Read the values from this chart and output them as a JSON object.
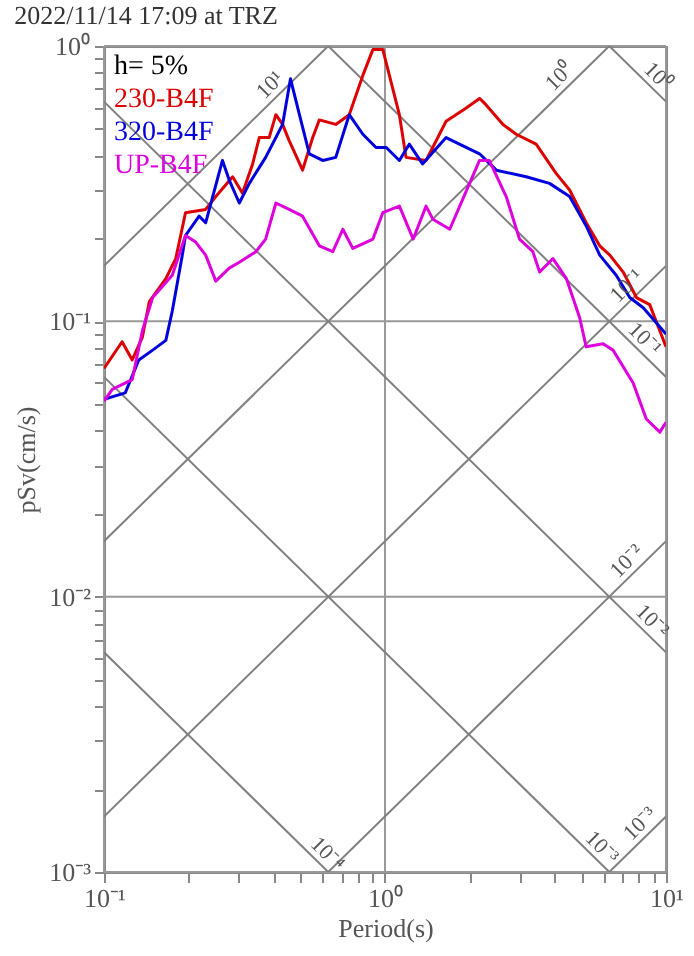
{
  "chart_data": {
    "type": "line",
    "title": "2022/11/14 17:09 at TRZ",
    "xlabel": "Period(s)",
    "ylabel": "pSv(cm/s)",
    "log": "xy",
    "grid": true,
    "legend": "top left",
    "xlim": [
      0.1,
      10
    ],
    "ylim": [
      0.001,
      1
    ],
    "xticks": [
      {
        "value": 0.1,
        "label": "10⁻¹"
      },
      {
        "value": 0.2,
        "label": null
      },
      {
        "value": 0.3,
        "label": null
      },
      {
        "value": 0.4,
        "label": null
      },
      {
        "value": 0.5,
        "label": null
      },
      {
        "value": 0.6,
        "label": null
      },
      {
        "value": 0.7,
        "label": null
      },
      {
        "value": 0.8,
        "label": null
      },
      {
        "value": 0.9,
        "label": null
      },
      {
        "value": 1,
        "label": "10⁰"
      },
      {
        "value": 2,
        "label": null
      },
      {
        "value": 3,
        "label": null
      },
      {
        "value": 4,
        "label": null
      },
      {
        "value": 5,
        "label": null
      },
      {
        "value": 6,
        "label": null
      },
      {
        "value": 7,
        "label": null
      },
      {
        "value": 8,
        "label": null
      },
      {
        "value": 9,
        "label": null
      },
      {
        "value": 10,
        "label": "10¹"
      }
    ],
    "yticks": [
      {
        "value": 0.001,
        "label": "10⁻³"
      },
      {
        "value": 0.002,
        "label": null
      },
      {
        "value": 0.003,
        "label": null
      },
      {
        "value": 0.004,
        "label": null
      },
      {
        "value": 0.005,
        "label": null
      },
      {
        "value": 0.006,
        "label": null
      },
      {
        "value": 0.007,
        "label": null
      },
      {
        "value": 0.008,
        "label": null
      },
      {
        "value": 0.009,
        "label": null
      },
      {
        "value": 0.01,
        "label": "10⁻²"
      },
      {
        "value": 0.02,
        "label": null
      },
      {
        "value": 0.03,
        "label": null
      },
      {
        "value": 0.04,
        "label": null
      },
      {
        "value": 0.05,
        "label": null
      },
      {
        "value": 0.06,
        "label": null
      },
      {
        "value": 0.07,
        "label": null
      },
      {
        "value": 0.08,
        "label": null
      },
      {
        "value": 0.09,
        "label": null
      },
      {
        "value": 0.1,
        "label": "10⁻¹"
      },
      {
        "value": 0.2,
        "label": null
      },
      {
        "value": 0.3,
        "label": null
      },
      {
        "value": 0.4,
        "label": null
      },
      {
        "value": 0.5,
        "label": null
      },
      {
        "value": 0.6,
        "label": null
      },
      {
        "value": 0.7,
        "label": null
      },
      {
        "value": 0.8,
        "label": null
      },
      {
        "value": 0.9,
        "label": null
      },
      {
        "value": 1,
        "label": "10⁰"
      }
    ],
    "annotations": [
      "h= 5%",
      {
        "text": "10¹",
        "x": 0.42,
        "y": 0.67
      },
      {
        "text": "10⁰",
        "x": 4.5,
        "y": 0.72
      },
      {
        "text": "10⁰",
        "x": 8.7,
        "y": 0.72
      },
      {
        "text": "10⁻¹",
        "x": 7.8,
        "y": 0.125
      },
      {
        "text": "10⁻¹",
        "x": 7.8,
        "y": 0.08
      },
      {
        "text": "10⁻²",
        "x": 7.8,
        "y": 0.0125
      },
      {
        "text": "10⁻²",
        "x": 8.3,
        "y": 0.00757
      },
      {
        "text": "10⁻³",
        "x": 5.5,
        "y": 0.00114
      },
      {
        "text": "10⁻³",
        "x": 8.7,
        "y": 0.00139
      },
      {
        "text": "10⁻⁴",
        "x": 0.58,
        "y": 0.00108
      }
    ],
    "series": [
      {
        "color": "#808080",
        "x": [
          0.1,
          0.628
        ],
        "values": [
          0.00628,
          0.001
        ]
      },
      {
        "color": "#808080",
        "x": [
          0.1,
          6.283
        ],
        "values": [
          0.0628,
          0.001
        ]
      },
      {
        "color": "#808080",
        "x": [
          0.1,
          10
        ],
        "values": [
          0.628,
          0.00628
        ]
      },
      {
        "color": "#808080",
        "x": [
          0.628,
          10
        ],
        "values": [
          1,
          0.0628
        ]
      },
      {
        "color": "#808080",
        "x": [
          6.283,
          10
        ],
        "values": [
          1,
          0.628
        ]
      },
      {
        "color": "#808080",
        "x": [
          6.283,
          10
        ],
        "values": [
          0.001,
          0.00159
        ]
      },
      {
        "color": "#808080",
        "x": [
          0.628,
          10
        ],
        "values": [
          0.001,
          0.0159
        ]
      },
      {
        "color": "#808080",
        "x": [
          0.1,
          10
        ],
        "values": [
          0.00159,
          0.159
        ]
      },
      {
        "color": "#808080",
        "x": [
          0.1,
          6.283
        ],
        "values": [
          0.0159,
          1
        ]
      },
      {
        "color": "#808080",
        "x": [
          0.1,
          0.628
        ],
        "values": [
          0.159,
          1
        ]
      },
      {
        "name": "230-B4F",
        "color": "#dd0000",
        "x": [
          0.1,
          0.116,
          0.126,
          0.137,
          0.145,
          0.166,
          0.18,
          0.195,
          0.23,
          0.25,
          0.287,
          0.311,
          0.338,
          0.357,
          0.387,
          0.409,
          0.432,
          0.456,
          0.509,
          0.553,
          0.584,
          0.668,
          0.746,
          0.834,
          0.906,
          0.982,
          1.125,
          1.188,
          1.4,
          1.65,
          1.94,
          2.17,
          2.29,
          2.63,
          2.93,
          3.45,
          4.07,
          4.54,
          5.2,
          5.81,
          6.31,
          7.04,
          7.85,
          8.75,
          10
        ],
        "values": [
          0.0675,
          0.0843,
          0.0724,
          0.0877,
          0.118,
          0.143,
          0.169,
          0.248,
          0.255,
          0.284,
          0.335,
          0.292,
          0.373,
          0.465,
          0.465,
          0.563,
          0.519,
          0.453,
          0.354,
          0.465,
          0.539,
          0.519,
          0.563,
          0.782,
          0.972,
          0.972,
          0.563,
          0.394,
          0.384,
          0.533,
          0.594,
          0.645,
          0.611,
          0.519,
          0.478,
          0.44,
          0.344,
          0.3,
          0.228,
          0.188,
          0.174,
          0.151,
          0.122,
          0.115,
          0.0808
        ]
      },
      {
        "name": "320-B4F",
        "color": "#0000dd",
        "x": [
          0.1,
          0.119,
          0.133,
          0.149,
          0.166,
          0.175,
          0.19,
          0.195,
          0.218,
          0.23,
          0.264,
          0.279,
          0.303,
          0.329,
          0.376,
          0.409,
          0.432,
          0.461,
          0.496,
          0.538,
          0.6,
          0.668,
          0.746,
          0.834,
          0.929,
          1.01,
          1.125,
          1.22,
          1.36,
          1.65,
          1.84,
          2.17,
          2.49,
          3.18,
          3.85,
          4.54,
          5.2,
          5.81,
          6.65,
          7.43,
          8.3,
          10
        ],
        "values": [
          0.0521,
          0.055,
          0.0724,
          0.0786,
          0.0853,
          0.109,
          0.174,
          0.205,
          0.241,
          0.228,
          0.384,
          0.326,
          0.269,
          0.317,
          0.394,
          0.465,
          0.519,
          0.76,
          0.563,
          0.406,
          0.384,
          0.394,
          0.563,
          0.478,
          0.428,
          0.428,
          0.384,
          0.44,
          0.373,
          0.465,
          0.44,
          0.406,
          0.354,
          0.335,
          0.317,
          0.284,
          0.222,
          0.174,
          0.147,
          0.122,
          0.112,
          0.09
        ]
      },
      {
        "name": "UP-B4F",
        "color": "#dd00dd",
        "x": [
          0.1,
          0.107,
          0.126,
          0.137,
          0.149,
          0.175,
          0.195,
          0.212,
          0.23,
          0.25,
          0.279,
          0.303,
          0.347,
          0.376,
          0.409,
          0.456,
          0.509,
          0.584,
          0.652,
          0.708,
          0.768,
          0.906,
          0.982,
          1.125,
          1.26,
          1.4,
          1.48,
          1.7,
          2.0,
          2.17,
          2.35,
          2.7,
          3.01,
          3.36,
          3.55,
          3.96,
          4.42,
          4.93,
          5.2,
          5.97,
          6.48,
          7.64,
          8.51,
          9.51,
          10
        ],
        "values": [
          0.0513,
          0.0566,
          0.0614,
          0.0926,
          0.122,
          0.147,
          0.205,
          0.194,
          0.174,
          0.14,
          0.156,
          0.164,
          0.179,
          0.199,
          0.269,
          0.255,
          0.241,
          0.188,
          0.179,
          0.216,
          0.184,
          0.199,
          0.248,
          0.262,
          0.199,
          0.262,
          0.235,
          0.216,
          0.317,
          0.384,
          0.384,
          0.284,
          0.199,
          0.179,
          0.151,
          0.169,
          0.143,
          0.103,
          0.0808,
          0.0829,
          0.0786,
          0.0597,
          0.0442,
          0.0396,
          0.043
        ]
      }
    ]
  }
}
